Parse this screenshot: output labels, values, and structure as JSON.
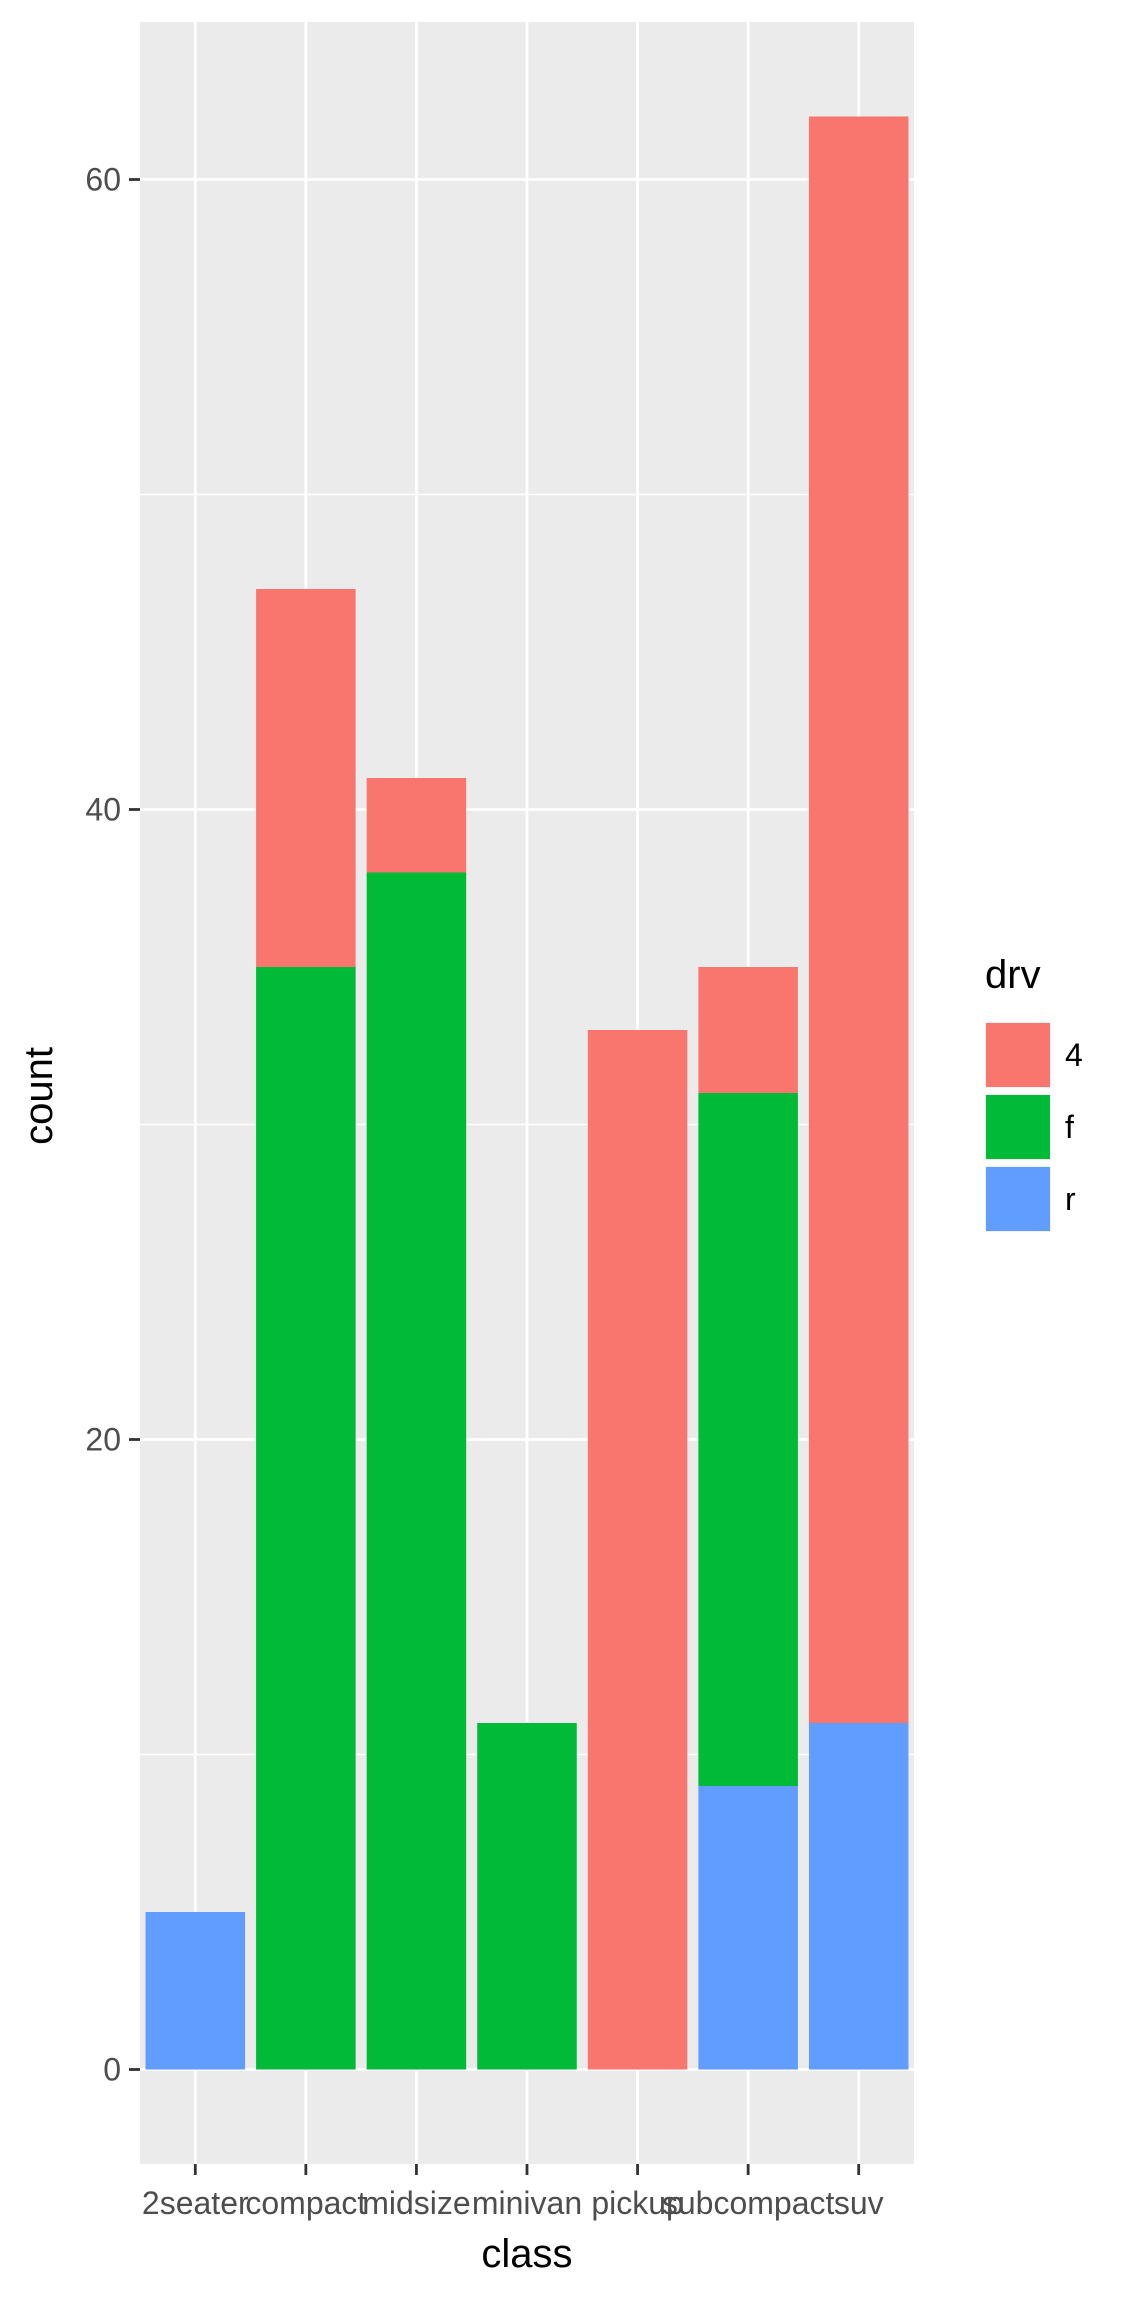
{
  "chart_data": {
    "type": "bar",
    "stacked": true,
    "title": "",
    "xlabel": "class",
    "ylabel": "count",
    "categories": [
      "2seater",
      "compact",
      "midsize",
      "minivan",
      "pickup",
      "subcompact",
      "suv"
    ],
    "series": [
      {
        "name": "r",
        "color": "#619CFF",
        "values": [
          5,
          0,
          0,
          0,
          0,
          9,
          11
        ]
      },
      {
        "name": "f",
        "color": "#00BA38",
        "values": [
          0,
          35,
          38,
          11,
          0,
          22,
          0
        ]
      },
      {
        "name": "4",
        "color": "#F8766D",
        "values": [
          0,
          12,
          3,
          0,
          33,
          4,
          51
        ]
      }
    ],
    "stack_order_bottom_to_top": [
      "r",
      "f",
      "4"
    ],
    "legend": {
      "title": "drv",
      "position": "right",
      "entries": [
        "4",
        "f",
        "r"
      ]
    },
    "yticks": [
      0,
      20,
      40,
      60
    ],
    "ylim": [
      -3,
      65
    ],
    "grid": true,
    "panel_background": "#EBEBEB",
    "gridline_color": "#FFFFFF"
  }
}
